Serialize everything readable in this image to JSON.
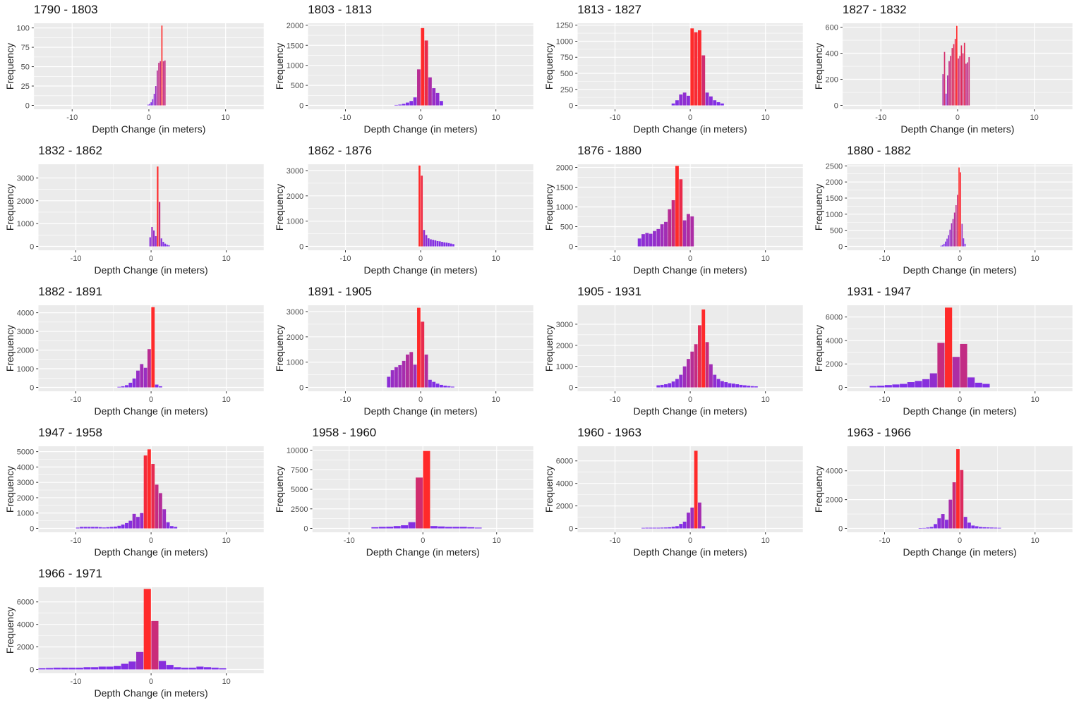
{
  "axis_labels": {
    "x": "Depth Change (in meters)",
    "y": "Frequency"
  },
  "colors": {
    "low": "#7a2ff0",
    "high": "#ff2a2a",
    "panel_bg": "#ebebeb",
    "grid": "#ffffff"
  },
  "chart_data": [
    {
      "type": "bar",
      "title": "1790 - 1803",
      "xlim": [
        -15,
        15
      ],
      "xticks": [
        -10,
        0,
        10
      ],
      "yticks": [
        0,
        25,
        50,
        75,
        100
      ],
      "ylim": [
        0,
        106
      ],
      "bin_width": 0.2,
      "x": [
        -0.1,
        0.1,
        0.3,
        0.5,
        0.7,
        0.9,
        1.1,
        1.3,
        1.5,
        1.7,
        1.9,
        2.1
      ],
      "values": [
        1,
        2,
        4,
        8,
        15,
        25,
        45,
        55,
        57,
        103,
        57,
        58
      ]
    },
    {
      "type": "bar",
      "title": "1803 - 1813",
      "xlim": [
        -15,
        15
      ],
      "xticks": [
        -10,
        0,
        10
      ],
      "yticks": [
        0,
        500,
        1000,
        1500,
        2000
      ],
      "ylim": [
        0,
        2050
      ],
      "bin_width": 0.5,
      "x": [
        -3.25,
        -2.75,
        -2.25,
        -1.75,
        -1.25,
        -0.75,
        -0.25,
        0.25,
        0.75,
        1.25,
        1.75,
        2.25,
        2.75
      ],
      "values": [
        10,
        20,
        40,
        70,
        110,
        200,
        900,
        1930,
        1620,
        700,
        430,
        310,
        110
      ]
    },
    {
      "type": "bar",
      "title": "1813 - 1827",
      "xlim": [
        -15,
        15
      ],
      "xticks": [
        -10,
        0,
        10
      ],
      "yticks": [
        0,
        250,
        500,
        750,
        1000,
        1250
      ],
      "ylim": [
        0,
        1280
      ],
      "bin_width": 0.5,
      "x": [
        -2.25,
        -1.75,
        -1.25,
        -0.75,
        -0.25,
        0.25,
        0.75,
        1.25,
        1.75,
        2.25,
        2.75,
        3.25,
        3.75,
        4.25
      ],
      "values": [
        30,
        80,
        170,
        200,
        150,
        1200,
        1140,
        1170,
        780,
        200,
        140,
        80,
        50,
        30
      ]
    },
    {
      "type": "bar",
      "title": "1827 - 1832",
      "xlim": [
        -15,
        15
      ],
      "xticks": [
        -10,
        0,
        10
      ],
      "yticks": [
        0,
        200,
        400,
        600
      ],
      "ylim": [
        0,
        630
      ],
      "bin_width": 0.2,
      "x": [
        -1.9,
        -1.7,
        -1.5,
        -1.3,
        -1.1,
        -0.9,
        -0.7,
        -0.5,
        -0.3,
        -0.1,
        0.1,
        0.3,
        0.5,
        0.7,
        0.9,
        1.1,
        1.3,
        1.5
      ],
      "values": [
        240,
        410,
        90,
        230,
        340,
        380,
        440,
        470,
        510,
        610,
        360,
        380,
        460,
        400,
        480,
        320,
        330,
        370
      ]
    },
    {
      "type": "bar",
      "title": "1832 - 1862",
      "xlim": [
        -15,
        15
      ],
      "xticks": [
        -10,
        0,
        10
      ],
      "yticks": [
        0,
        1000,
        2000,
        3000
      ],
      "ylim": [
        0,
        3600
      ],
      "bin_width": 0.25,
      "x": [
        -0.125,
        0.125,
        0.375,
        0.625,
        0.875,
        1.125,
        1.375,
        1.625,
        1.875,
        2.125,
        2.375
      ],
      "values": [
        400,
        850,
        700,
        450,
        3500,
        1950,
        350,
        200,
        120,
        80,
        50
      ]
    },
    {
      "type": "bar",
      "title": "1862 - 1876",
      "xlim": [
        -15,
        15
      ],
      "xticks": [
        -10,
        0,
        10
      ],
      "yticks": [
        0,
        1000,
        2000,
        3000
      ],
      "ylim": [
        0,
        3250
      ],
      "bin_width": 0.3,
      "x": [
        -0.15,
        0.15,
        0.45,
        0.75,
        1.05,
        1.35,
        1.65,
        1.95,
        2.25,
        2.55,
        2.85,
        3.15,
        3.45,
        3.75,
        4.05,
        4.35
      ],
      "values": [
        3200,
        2800,
        650,
        450,
        320,
        280,
        260,
        240,
        210,
        200,
        180,
        160,
        150,
        130,
        110,
        90
      ]
    },
    {
      "type": "bar",
      "title": "1876 - 1880",
      "xlim": [
        -15,
        15
      ],
      "xticks": [
        -10,
        0,
        10
      ],
      "yticks": [
        0,
        500,
        1000,
        1500,
        2000
      ],
      "ylim": [
        0,
        2080
      ],
      "bin_width": 0.5,
      "x": [
        -6.75,
        -6.25,
        -5.75,
        -5.25,
        -4.75,
        -4.25,
        -3.75,
        -3.25,
        -2.75,
        -2.25,
        -1.75,
        -1.25,
        -0.75,
        -0.25,
        0.25
      ],
      "values": [
        200,
        310,
        340,
        320,
        390,
        440,
        560,
        620,
        940,
        1170,
        2040,
        1700,
        660,
        820,
        760
      ]
    },
    {
      "type": "bar",
      "title": "1880 - 1882",
      "xlim": [
        -15,
        15
      ],
      "xticks": [
        -10,
        0,
        10
      ],
      "yticks": [
        0,
        500,
        1000,
        1500,
        2000,
        2500
      ],
      "ylim": [
        0,
        2550
      ],
      "bin_width": 0.2,
      "x": [
        -2.5,
        -2.3,
        -2.1,
        -1.9,
        -1.7,
        -1.5,
        -1.3,
        -1.1,
        -0.9,
        -0.7,
        -0.5,
        -0.3,
        -0.1,
        0.1,
        0.3,
        0.5,
        0.7
      ],
      "values": [
        20,
        40,
        80,
        150,
        240,
        350,
        520,
        720,
        850,
        1050,
        1280,
        1600,
        2450,
        2300,
        700,
        250,
        80
      ]
    },
    {
      "type": "bar",
      "title": "1882 - 1891",
      "xlim": [
        -15,
        15
      ],
      "xticks": [
        -10,
        0,
        10
      ],
      "yticks": [
        0,
        1000,
        2000,
        3000,
        4000
      ],
      "ylim": [
        0,
        4400
      ],
      "bin_width": 0.5,
      "x": [
        -4.25,
        -3.75,
        -3.25,
        -2.75,
        -2.25,
        -1.75,
        -1.25,
        -0.75,
        -0.25,
        0.25,
        0.75,
        1.25
      ],
      "values": [
        30,
        60,
        120,
        250,
        480,
        900,
        1250,
        1050,
        2050,
        4300,
        150,
        60
      ]
    },
    {
      "type": "bar",
      "title": "1891 - 1905",
      "xlim": [
        -15,
        15
      ],
      "xticks": [
        -10,
        0,
        10
      ],
      "yticks": [
        0,
        1000,
        2000,
        3000
      ],
      "ylim": [
        0,
        3250
      ],
      "bin_width": 0.5,
      "x": [
        -4.25,
        -3.75,
        -3.25,
        -2.75,
        -2.25,
        -1.75,
        -1.25,
        -0.75,
        -0.25,
        0.25,
        0.75,
        1.25,
        1.75,
        2.25,
        2.75,
        3.25,
        3.75,
        4.25
      ],
      "values": [
        420,
        680,
        800,
        880,
        1050,
        1300,
        1400,
        900,
        3150,
        2600,
        1300,
        300,
        220,
        150,
        100,
        70,
        50,
        30
      ]
    },
    {
      "type": "bar",
      "title": "1905 - 1931",
      "xlim": [
        -15,
        15
      ],
      "xticks": [
        -10,
        0,
        10
      ],
      "yticks": [
        0,
        1000,
        2000,
        3000
      ],
      "ylim": [
        0,
        3900
      ],
      "bin_width": 0.5,
      "x": [
        -4.25,
        -3.75,
        -3.25,
        -2.75,
        -2.25,
        -1.75,
        -1.25,
        -0.75,
        -0.25,
        0.25,
        0.75,
        1.25,
        1.75,
        2.25,
        2.75,
        3.25,
        3.75,
        4.25,
        4.75,
        5.25,
        5.75,
        6.25,
        6.75,
        7.25,
        7.75,
        8.25,
        8.75
      ],
      "values": [
        100,
        120,
        150,
        200,
        280,
        400,
        600,
        1000,
        1350,
        1700,
        2050,
        2950,
        3700,
        2150,
        1100,
        600,
        400,
        300,
        250,
        200,
        180,
        150,
        120,
        100,
        80,
        60,
        50
      ]
    },
    {
      "type": "bar",
      "title": "1931 - 1947",
      "xlim": [
        -15,
        15
      ],
      "xticks": [
        -10,
        0,
        10
      ],
      "yticks": [
        0,
        2000,
        4000,
        6000
      ],
      "ylim": [
        0,
        7000
      ],
      "bin_width": 1,
      "x": [
        -11.5,
        -10.5,
        -9.5,
        -8.5,
        -7.5,
        -6.5,
        -5.5,
        -4.5,
        -3.5,
        -2.5,
        -1.5,
        -0.5,
        0.5,
        1.5,
        2.5,
        3.5
      ],
      "values": [
        120,
        150,
        200,
        250,
        300,
        450,
        550,
        700,
        1200,
        3800,
        6800,
        2600,
        3700,
        850,
        400,
        300
      ]
    },
    {
      "type": "bar",
      "title": "1947 - 1958",
      "xlim": [
        -15,
        15
      ],
      "xticks": [
        -10,
        0,
        10
      ],
      "yticks": [
        0,
        1000,
        2000,
        3000,
        4000,
        5000
      ],
      "ylim": [
        0,
        5350
      ],
      "bin_width": 0.5,
      "x": [
        -9.75,
        -9.25,
        -8.75,
        -8.25,
        -7.75,
        -7.25,
        -6.75,
        -6.25,
        -5.75,
        -5.25,
        -4.75,
        -4.25,
        -3.75,
        -3.25,
        -2.75,
        -2.25,
        -1.75,
        -1.25,
        -0.75,
        -0.25,
        0.25,
        0.75,
        1.25,
        1.75,
        2.25,
        2.75,
        3.25
      ],
      "values": [
        50,
        100,
        100,
        100,
        100,
        100,
        80,
        60,
        80,
        100,
        120,
        170,
        250,
        350,
        500,
        950,
        750,
        1000,
        4750,
        5150,
        4200,
        2850,
        2300,
        1250,
        400,
        150,
        100
      ]
    },
    {
      "type": "bar",
      "title": "1958 - 1960",
      "xlim": [
        -15,
        15
      ],
      "xticks": [
        -10,
        0,
        10
      ],
      "yticks": [
        0,
        2500,
        5000,
        7500,
        10000
      ],
      "ylim": [
        0,
        10500
      ],
      "bin_width": 1,
      "x": [
        -6.5,
        -5.5,
        -4.5,
        -3.5,
        -2.5,
        -1.5,
        -0.5,
        0.5,
        1.5,
        2.5,
        3.5,
        4.5,
        5.5,
        6.5,
        7.5
      ],
      "values": [
        150,
        200,
        220,
        300,
        400,
        800,
        6500,
        9900,
        300,
        250,
        200,
        200,
        200,
        150,
        100
      ]
    },
    {
      "type": "bar",
      "title": "1960 - 1963",
      "xlim": [
        -15,
        15
      ],
      "xticks": [
        -10,
        0,
        10
      ],
      "yticks": [
        0,
        2000,
        4000,
        6000
      ],
      "ylim": [
        0,
        7300
      ],
      "bin_width": 0.5,
      "x": [
        -6.25,
        -5.75,
        -5.25,
        -4.75,
        -4.25,
        -3.75,
        -3.25,
        -2.75,
        -2.25,
        -1.75,
        -1.25,
        -0.75,
        -0.25,
        0.25,
        0.75,
        1.25,
        1.75
      ],
      "values": [
        50,
        60,
        60,
        60,
        60,
        70,
        80,
        100,
        150,
        200,
        400,
        600,
        1400,
        1850,
        6900,
        2300,
        200
      ]
    },
    {
      "type": "bar",
      "title": "1963 - 1966",
      "xlim": [
        -15,
        15
      ],
      "xticks": [
        -10,
        0,
        10
      ],
      "yticks": [
        0,
        2000,
        4000
      ],
      "ylim": [
        0,
        5700
      ],
      "bin_width": 0.5,
      "x": [
        -5.25,
        -4.75,
        -4.25,
        -3.75,
        -3.25,
        -2.75,
        -2.25,
        -1.75,
        -1.25,
        -0.75,
        -0.25,
        0.25,
        0.75,
        1.25,
        1.75,
        2.25,
        2.75,
        3.25,
        3.75,
        4.25,
        4.75,
        5.25
      ],
      "values": [
        20,
        30,
        60,
        100,
        300,
        700,
        1000,
        600,
        2000,
        3200,
        5500,
        4050,
        800,
        400,
        200,
        150,
        100,
        80,
        70,
        60,
        50,
        40
      ]
    },
    {
      "type": "bar",
      "title": "1966 - 1971",
      "xlim": [
        -15,
        15
      ],
      "xticks": [
        -10,
        0,
        10
      ],
      "yticks": [
        0,
        2000,
        4000,
        6000
      ],
      "ylim": [
        0,
        7300
      ],
      "bin_width": 1,
      "x": [
        -14.5,
        -13.5,
        -12.5,
        -11.5,
        -10.5,
        -9.5,
        -8.5,
        -7.5,
        -6.5,
        -5.5,
        -4.5,
        -3.5,
        -2.5,
        -1.5,
        -0.5,
        0.5,
        1.5,
        2.5,
        3.5,
        4.5,
        5.5,
        6.5,
        7.5,
        8.5,
        9.5
      ],
      "values": [
        100,
        120,
        150,
        150,
        150,
        150,
        200,
        200,
        250,
        250,
        300,
        500,
        700,
        1550,
        7150,
        4300,
        750,
        400,
        200,
        150,
        150,
        250,
        200,
        150,
        100
      ]
    }
  ]
}
